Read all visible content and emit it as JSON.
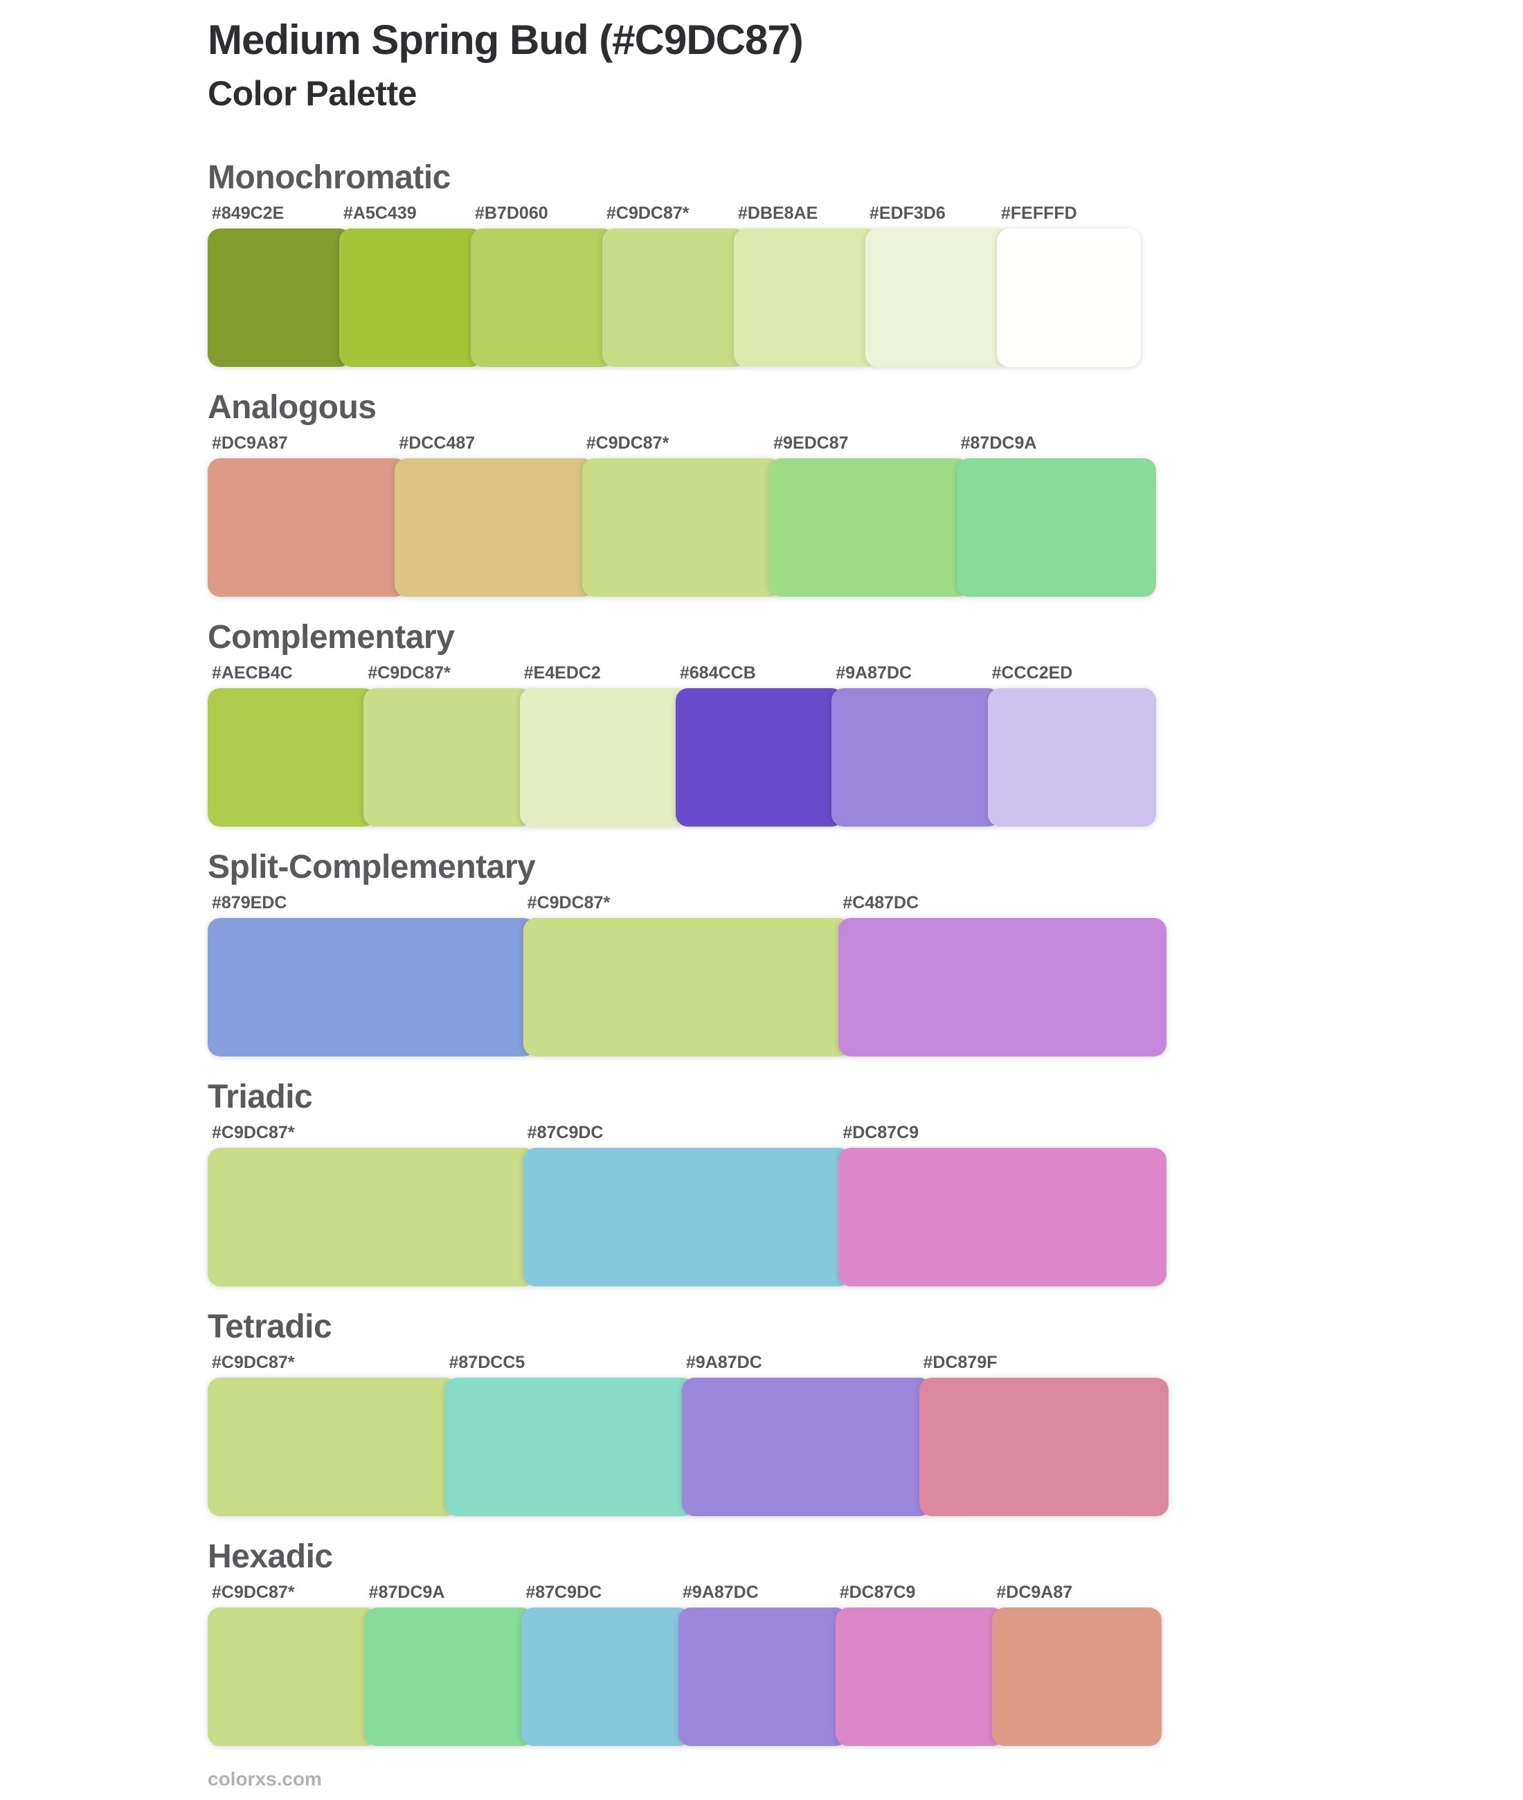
{
  "page": {
    "title": "Medium Spring Bud (#C9DC87)",
    "subtitle": "Color Palette",
    "base_color": "#C9DC87",
    "footer": "colorxs.com"
  },
  "sections": [
    {
      "name": "Monochromatic",
      "swatches": [
        {
          "label": "#849C2E",
          "color": "#849C2E"
        },
        {
          "label": "#A5C439",
          "color": "#A5C439"
        },
        {
          "label": "#B7D060",
          "color": "#B7D060"
        },
        {
          "label": "#C9DC87*",
          "color": "#C9DC87"
        },
        {
          "label": "#DBE8AE",
          "color": "#DBE8AE"
        },
        {
          "label": "#EDF3D6",
          "color": "#EDF3D6"
        },
        {
          "label": "#FEFFFD",
          "color": "#FEFFFD"
        }
      ]
    },
    {
      "name": "Analogous",
      "swatches": [
        {
          "label": "#DC9A87",
          "color": "#DC9A87"
        },
        {
          "label": "#DCC487",
          "color": "#DCC487"
        },
        {
          "label": "#C9DC87*",
          "color": "#C9DC87"
        },
        {
          "label": "#9EDC87",
          "color": "#9EDC87"
        },
        {
          "label": "#87DC9A",
          "color": "#87DC9A"
        }
      ]
    },
    {
      "name": "Complementary",
      "swatches": [
        {
          "label": "#AECB4C",
          "color": "#AECB4C"
        },
        {
          "label": "#C9DC87*",
          "color": "#C9DC87"
        },
        {
          "label": "#E4EDC2",
          "color": "#E4EDC2"
        },
        {
          "label": "#684CCB",
          "color": "#684CCB"
        },
        {
          "label": "#9A87DC",
          "color": "#9A87DC"
        },
        {
          "label": "#CCC2ED",
          "color": "#CCC2ED"
        }
      ]
    },
    {
      "name": "Split-Complementary",
      "swatches": [
        {
          "label": "#879EDC",
          "color": "#879EDC"
        },
        {
          "label": "#C9DC87*",
          "color": "#C9DC87"
        },
        {
          "label": "#C487DC",
          "color": "#C487DC"
        }
      ]
    },
    {
      "name": "Triadic",
      "swatches": [
        {
          "label": "#C9DC87*",
          "color": "#C9DC87"
        },
        {
          "label": "#87C9DC",
          "color": "#87C9DC"
        },
        {
          "label": "#DC87C9",
          "color": "#DC87C9"
        }
      ]
    },
    {
      "name": "Tetradic",
      "swatches": [
        {
          "label": "#C9DC87*",
          "color": "#C9DC87"
        },
        {
          "label": "#87DCC5",
          "color": "#87DCC5"
        },
        {
          "label": "#9A87DC",
          "color": "#9A87DC"
        },
        {
          "label": "#DC879F",
          "color": "#DC879F"
        }
      ]
    },
    {
      "name": "Hexadic",
      "swatches": [
        {
          "label": "#C9DC87*",
          "color": "#C9DC87"
        },
        {
          "label": "#87DC9A",
          "color": "#87DC9A"
        },
        {
          "label": "#87C9DC",
          "color": "#87C9DC"
        },
        {
          "label": "#9A87DC",
          "color": "#9A87DC"
        },
        {
          "label": "#DC87C9",
          "color": "#DC87C9"
        },
        {
          "label": "#DC9A87",
          "color": "#DC9A87"
        }
      ]
    }
  ]
}
